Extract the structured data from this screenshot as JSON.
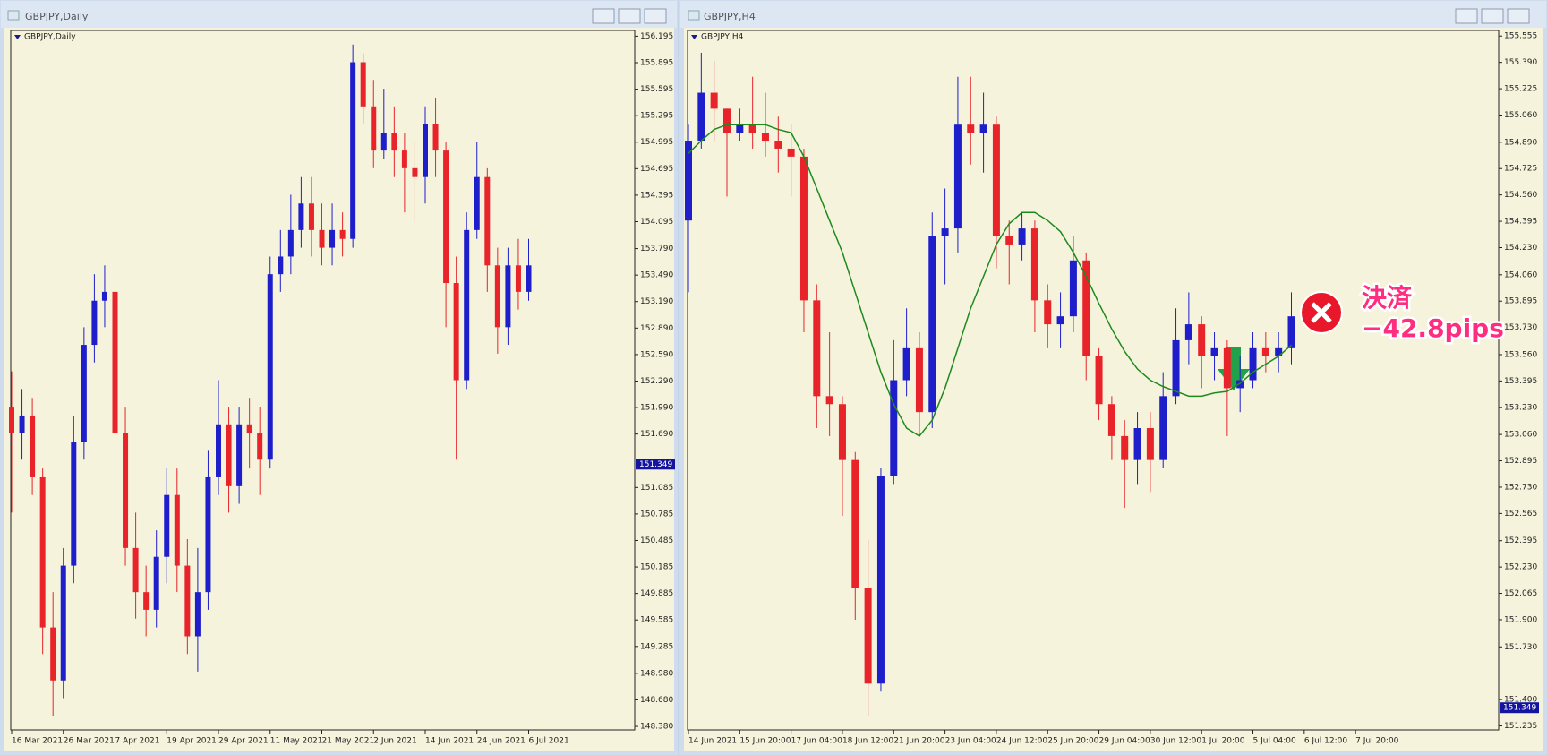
{
  "chart_data": [
    {
      "type": "candlestick",
      "title": "GBPJPY,Daily",
      "categories": [
        "16 Mar 2021",
        null,
        null,
        null,
        null,
        "26 Mar 2021",
        null,
        null,
        null,
        null,
        "7 Apr 2021",
        null,
        null,
        null,
        null,
        "19 Apr 2021",
        null,
        null,
        null,
        null,
        "29 Apr 2021",
        null,
        null,
        null,
        null,
        "11 May 2021",
        null,
        null,
        null,
        null,
        "21 May 2021",
        null,
        null,
        null,
        null,
        "2 Jun 2021",
        null,
        null,
        null,
        null,
        "14 Jun 2021",
        null,
        null,
        null,
        null,
        "24 Jun 2021",
        null,
        null,
        null,
        null,
        "6 Jul 2021"
      ],
      "open": [
        152.0,
        151.7,
        151.9,
        151.2,
        149.5,
        148.9,
        150.2,
        151.6,
        152.7,
        153.2,
        153.3,
        151.7,
        150.4,
        149.9,
        149.7,
        150.3,
        151.0,
        150.2,
        149.4,
        149.9,
        151.2,
        151.8,
        151.1,
        151.8,
        151.7,
        151.4,
        153.5,
        153.7,
        154.0,
        154.3,
        154.0,
        153.8,
        154.0,
        153.9,
        155.9,
        155.4,
        154.9,
        155.1,
        154.9,
        154.7,
        154.6,
        155.2,
        154.9,
        153.4,
        152.3,
        154.0,
        154.6,
        153.6,
        152.9,
        153.6,
        153.3
      ],
      "high": [
        152.4,
        152.2,
        152.1,
        151.3,
        149.9,
        150.4,
        151.9,
        152.9,
        153.5,
        153.6,
        153.4,
        152.0,
        150.8,
        150.2,
        150.6,
        151.3,
        151.3,
        150.5,
        150.4,
        151.5,
        152.3,
        152.0,
        152.0,
        152.1,
        152.0,
        153.7,
        154.0,
        154.4,
        154.6,
        154.6,
        154.3,
        154.3,
        154.2,
        156.1,
        156.0,
        155.7,
        155.6,
        155.4,
        155.1,
        155.0,
        155.4,
        155.5,
        155.0,
        153.7,
        154.2,
        155.0,
        154.7,
        153.8,
        153.8,
        153.9,
        153.9
      ],
      "low": [
        150.8,
        151.4,
        151.0,
        149.2,
        148.5,
        148.7,
        150.0,
        151.4,
        152.5,
        152.9,
        151.4,
        150.2,
        149.6,
        149.4,
        149.5,
        150.0,
        149.9,
        149.2,
        149.0,
        149.7,
        151.0,
        150.8,
        150.9,
        151.3,
        151.0,
        151.3,
        153.3,
        153.5,
        153.8,
        153.7,
        153.6,
        153.6,
        153.7,
        153.8,
        155.2,
        154.7,
        154.8,
        154.6,
        154.2,
        154.1,
        154.3,
        154.6,
        152.9,
        151.4,
        152.2,
        153.9,
        153.3,
        152.6,
        152.7,
        153.1,
        153.2
      ],
      "close": [
        151.7,
        151.9,
        151.2,
        149.5,
        148.9,
        150.2,
        151.6,
        152.7,
        153.2,
        153.3,
        151.7,
        150.4,
        149.9,
        149.7,
        150.3,
        151.0,
        150.2,
        149.4,
        149.9,
        151.2,
        151.8,
        151.1,
        151.8,
        151.7,
        151.4,
        153.5,
        153.7,
        154.0,
        154.3,
        154.0,
        153.8,
        154.0,
        153.9,
        155.9,
        155.4,
        154.9,
        155.1,
        154.9,
        154.7,
        154.6,
        155.2,
        154.9,
        153.4,
        152.3,
        154.0,
        154.6,
        153.6,
        152.9,
        153.6,
        153.3,
        153.6
      ],
      "up_color": "#1e1ecb",
      "down_color": "#e8232a",
      "ylim": [
        148.34,
        156.26
      ],
      "yticks": [
        156.195,
        155.895,
        155.595,
        155.295,
        154.995,
        154.695,
        154.395,
        154.095,
        {
          "value": 153.79,
          "label": "153.790"
        },
        {
          "value": 153.49,
          "label": "153.490"
        },
        {
          "value": 153.19,
          "label": "153.190"
        },
        {
          "value": 152.89,
          "label": "152.890"
        },
        {
          "value": 152.59,
          "label": "152.590"
        },
        {
          "value": 152.29,
          "label": "152.290"
        },
        {
          "value": 151.99,
          "label": "151.990"
        },
        {
          "value": 151.69,
          "label": "151.690"
        },
        151.085,
        150.785,
        150.485,
        150.185,
        149.885,
        149.585,
        149.285,
        {
          "value": 148.98,
          "label": "148.980"
        },
        {
          "value": 148.68,
          "label": "148.680"
        },
        {
          "value": 148.38,
          "label": "148.380"
        }
      ],
      "current_price": 151.349
    },
    {
      "type": "candlestick",
      "title": "GBPJPY,H4",
      "categories": [
        "14 Jun 2021",
        null,
        null,
        null,
        "15 Jun 20:00",
        null,
        null,
        null,
        "17 Jun 04:00",
        null,
        null,
        null,
        "18 Jun 12:00",
        null,
        null,
        null,
        "21 Jun 20:00",
        null,
        null,
        null,
        "23 Jun 04:00",
        null,
        null,
        null,
        "24 Jun 12:00",
        null,
        null,
        null,
        "25 Jun 20:00",
        null,
        null,
        null,
        "29 Jun 04:00",
        null,
        null,
        null,
        "30 Jun 12:00",
        null,
        null,
        null,
        "1 Jul 20:00",
        null,
        null,
        null,
        "5 Jul 04:00",
        null,
        null,
        null,
        "6 Jul 12:00",
        null,
        null,
        null,
        "7 Jul 20:00"
      ],
      "open": [
        154.4,
        154.9,
        155.2,
        155.1,
        154.95,
        155.0,
        154.95,
        154.9,
        154.85,
        154.8,
        153.9,
        153.3,
        153.25,
        152.9,
        152.1,
        151.5,
        152.8,
        153.4,
        153.6,
        153.2,
        154.3,
        154.35,
        155.0,
        154.95,
        155.0,
        154.3,
        154.25,
        154.35,
        153.9,
        153.75,
        153.8,
        154.15,
        153.55,
        153.25,
        153.05,
        152.9,
        153.1,
        152.9,
        153.3,
        153.65,
        153.75,
        153.55,
        153.6,
        153.35,
        153.4,
        153.6,
        153.55,
        153.6,
        null,
        null,
        null,
        null,
        null
      ],
      "high": [
        155.0,
        155.45,
        155.4,
        155.1,
        155.1,
        155.3,
        155.2,
        155.05,
        155.0,
        154.85,
        154.0,
        153.7,
        153.3,
        152.95,
        152.4,
        152.85,
        153.65,
        153.85,
        153.7,
        154.45,
        154.6,
        155.3,
        155.3,
        155.2,
        155.05,
        154.4,
        154.45,
        154.4,
        154.0,
        153.95,
        154.3,
        154.2,
        153.6,
        153.3,
        153.15,
        153.2,
        153.2,
        153.45,
        153.85,
        153.95,
        153.8,
        153.7,
        153.65,
        153.55,
        153.7,
        153.7,
        153.7,
        153.95,
        null,
        null,
        null,
        null,
        null
      ],
      "low": [
        153.95,
        154.85,
        154.9,
        154.55,
        154.9,
        154.85,
        154.8,
        154.7,
        154.55,
        153.7,
        153.1,
        153.05,
        152.55,
        151.9,
        151.3,
        151.45,
        152.75,
        153.3,
        153.05,
        153.1,
        154.0,
        154.2,
        154.75,
        154.7,
        154.1,
        154.0,
        154.15,
        153.7,
        153.6,
        153.6,
        153.7,
        153.4,
        153.15,
        152.9,
        152.6,
        152.75,
        152.7,
        152.85,
        153.25,
        153.5,
        153.35,
        153.4,
        153.05,
        153.2,
        153.35,
        153.45,
        153.45,
        153.5,
        null,
        null,
        null,
        null,
        null
      ],
      "close": [
        154.9,
        155.2,
        155.1,
        154.95,
        155.0,
        154.95,
        154.9,
        154.85,
        154.8,
        153.9,
        153.3,
        153.25,
        152.9,
        152.1,
        151.5,
        152.8,
        153.4,
        153.6,
        153.2,
        154.3,
        154.35,
        155.0,
        154.95,
        155.0,
        154.3,
        154.25,
        154.35,
        153.9,
        153.75,
        153.8,
        154.15,
        153.55,
        153.25,
        153.05,
        152.9,
        153.1,
        152.9,
        153.3,
        153.65,
        153.75,
        153.55,
        153.6,
        153.35,
        153.4,
        153.6,
        153.55,
        153.6,
        153.8,
        null,
        null,
        null,
        null,
        null
      ],
      "series": [
        {
          "color": "#1e8a1e",
          "values": [
            154.82,
            154.9,
            154.97,
            155.0,
            155.0,
            155.0,
            155.0,
            154.97,
            154.95,
            154.8,
            154.6,
            154.4,
            154.2,
            153.95,
            153.7,
            153.45,
            153.25,
            153.1,
            153.05,
            153.15,
            153.35,
            153.6,
            153.85,
            154.05,
            154.25,
            154.38,
            154.45,
            154.45,
            154.4,
            154.33,
            154.2,
            154.05,
            153.88,
            153.72,
            153.58,
            153.47,
            153.4,
            153.36,
            153.33,
            153.3,
            153.3,
            153.32,
            153.33,
            153.38,
            153.45,
            153.5,
            153.55,
            153.62,
            null,
            null,
            null,
            null,
            null
          ]
        }
      ],
      "up_color": "#1e1ecb",
      "down_color": "#e8232a",
      "ylim": [
        151.21,
        155.59
      ],
      "yticks": [
        155.555,
        {
          "value": 155.39,
          "label": "155.390"
        },
        155.225,
        {
          "value": 155.06,
          "label": "155.060"
        },
        {
          "value": 154.89,
          "label": "154.890"
        },
        154.725,
        {
          "value": 154.56,
          "label": "154.560"
        },
        154.395,
        {
          "value": 154.23,
          "label": "154.230"
        },
        {
          "value": 154.06,
          "label": "154.060"
        },
        153.895,
        {
          "value": 153.73,
          "label": "153.730"
        },
        {
          "value": 153.56,
          "label": "153.560"
        },
        153.395,
        {
          "value": 153.23,
          "label": "153.230"
        },
        {
          "value": 153.06,
          "label": "153.060"
        },
        152.895,
        {
          "value": 152.73,
          "label": "152.730"
        },
        152.565,
        152.395,
        {
          "value": 152.23,
          "label": "152.230"
        },
        152.065,
        {
          "value": 151.9,
          "label": "151.900"
        },
        {
          "value": 151.73,
          "label": "151.730"
        },
        {
          "value": 151.4,
          "label": "151.400"
        },
        151.235
      ],
      "current_price": 151.349,
      "annotations": [
        "決済",
        "−42.8pips"
      ]
    }
  ]
}
